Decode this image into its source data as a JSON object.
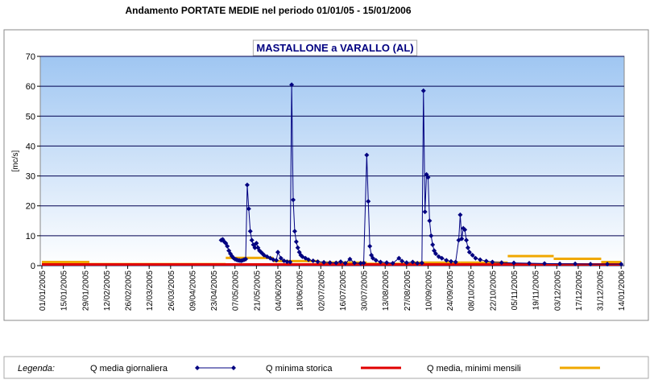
{
  "chart_data": {
    "type": "line",
    "title": "Andamento PORTATE MEDIE nel periodo 01/01/05 - 15/01/2006",
    "subtitle": "MASTALLONE a VARALLO (AL)",
    "y_label": "[mc/s]",
    "legend_title": "Legenda:",
    "xlim": [
      "01/01/2005",
      "16/01/2006"
    ],
    "xticks": [
      "01/01/2005",
      "15/01/2005",
      "29/01/2005",
      "12/02/2005",
      "26/02/2005",
      "12/03/2005",
      "26/03/2005",
      "09/04/2005",
      "23/04/2005",
      "07/05/2005",
      "21/05/2005",
      "04/06/2005",
      "18/06/2005",
      "02/07/2005",
      "16/07/2005",
      "30/07/2005",
      "13/08/2005",
      "27/08/2005",
      "10/09/2005",
      "24/09/2005",
      "08/10/2005",
      "22/10/2005",
      "05/11/2005",
      "19/11/2005",
      "03/12/2005",
      "17/12/2005",
      "31/12/2005",
      "14/01/2006"
    ],
    "ylim": [
      0,
      70
    ],
    "yticks": [
      0,
      10,
      20,
      30,
      40,
      50,
      60,
      70
    ],
    "grid": true,
    "series": [
      {
        "name": "Q media giornaliera",
        "color": "#000080",
        "x": [
          "28/04/2005",
          "29/04/2005",
          "30/04/2005",
          "01/05/2005",
          "02/05/2005",
          "03/05/2005",
          "04/05/2005",
          "05/05/2005",
          "06/05/2005",
          "07/05/2005",
          "08/05/2005",
          "09/05/2005",
          "10/05/2005",
          "11/05/2005",
          "12/05/2005",
          "13/05/2005",
          "14/05/2005",
          "15/05/2005",
          "16/05/2005",
          "17/05/2005",
          "18/05/2005",
          "19/05/2005",
          "20/05/2005",
          "21/05/2005",
          "22/05/2005",
          "23/05/2005",
          "24/05/2005",
          "25/05/2005",
          "26/05/2005",
          "28/05/2005",
          "30/05/2005",
          "01/06/2005",
          "03/06/2005",
          "04/06/2005",
          "06/06/2005",
          "08/06/2005",
          "10/06/2005",
          "12/06/2005",
          "13/06/2005",
          "14/06/2005",
          "15/06/2005",
          "16/06/2005",
          "17/06/2005",
          "18/06/2005",
          "19/06/2005",
          "20/06/2005",
          "22/06/2005",
          "24/06/2005",
          "27/06/2005",
          "30/06/2005",
          "04/07/2005",
          "08/07/2005",
          "12/07/2005",
          "15/07/2005",
          "18/07/2005",
          "21/07/2005",
          "24/07/2005",
          "28/07/2005",
          "30/07/2005",
          "01/08/2005",
          "02/08/2005",
          "03/08/2005",
          "04/08/2005",
          "05/08/2005",
          "07/08/2005",
          "10/08/2005",
          "14/08/2005",
          "18/08/2005",
          "22/08/2005",
          "24/08/2005",
          "27/08/2005",
          "31/08/2005",
          "03/09/2005",
          "06/09/2005",
          "07/09/2005",
          "08/09/2005",
          "09/09/2005",
          "10/09/2005",
          "11/09/2005",
          "12/09/2005",
          "13/09/2005",
          "14/09/2005",
          "15/09/2005",
          "17/09/2005",
          "19/09/2005",
          "22/09/2005",
          "25/09/2005",
          "28/09/2005",
          "30/09/2005",
          "01/10/2005",
          "02/10/2005",
          "03/10/2005",
          "04/10/2005",
          "05/10/2005",
          "06/10/2005",
          "07/10/2005",
          "09/10/2005",
          "11/10/2005",
          "14/10/2005",
          "18/10/2005",
          "22/10/2005",
          "28/10/2005",
          "05/11/2005",
          "15/11/2005",
          "25/11/2005",
          "05/12/2005",
          "15/12/2005",
          "25/12/2005",
          "05/01/2006",
          "14/01/2006"
        ],
        "values": [
          8.5,
          8.8,
          8,
          7.5,
          6.5,
          5,
          4,
          3.2,
          2.6,
          2.2,
          2,
          1.8,
          1.7,
          1.6,
          1.8,
          2,
          2.2,
          27,
          19,
          11.5,
          8.5,
          7,
          6,
          7.5,
          6,
          5,
          4.5,
          4,
          3.5,
          3,
          2.5,
          2,
          1.8,
          4.5,
          2.5,
          1.6,
          1.3,
          1.2,
          60.5,
          22,
          11.5,
          8,
          6,
          4.5,
          3.5,
          3,
          2.5,
          2,
          1.6,
          1.3,
          1.1,
          1,
          0.9,
          1.3,
          0.8,
          2.2,
          0.9,
          0.8,
          0.9,
          37,
          21.5,
          6.5,
          3.5,
          2.5,
          1.8,
          1.2,
          1,
          0.8,
          2.5,
          1.5,
          1,
          1.2,
          0.8,
          0.9,
          58.5,
          18,
          30.5,
          29.5,
          15,
          10,
          7,
          5,
          4,
          3,
          2.5,
          1.8,
          1.4,
          1.2,
          8.5,
          17,
          9,
          12.5,
          12,
          8.5,
          6,
          4.5,
          3.5,
          2.5,
          2,
          1.5,
          1.2,
          1,
          0.9,
          0.8,
          0.7,
          0.6,
          0.6,
          0.5,
          0.5,
          0.5
        ]
      },
      {
        "name": "Q minima storica",
        "color": "#e00000",
        "bins": [
          "01/01/2005",
          "14/01/2006"
        ],
        "values": [
          0.4
        ]
      },
      {
        "name": "Q media, minimi mensili",
        "color": "#f0a800",
        "bins": [
          "01/01/2005",
          "01/02/2005",
          "01/03/2005",
          "01/04/2005",
          "01/05/2005",
          "01/06/2005",
          "01/07/2005",
          "01/08/2005",
          "01/09/2005",
          "01/10/2005",
          "01/11/2005",
          "01/12/2005",
          "01/01/2006",
          "14/01/2006"
        ],
        "values": [
          1.2,
          0.5,
          0.5,
          0.5,
          2.6,
          1.5,
          1.0,
          0.6,
          1.0,
          1.0,
          3.2,
          2.3,
          1.2
        ]
      }
    ]
  }
}
